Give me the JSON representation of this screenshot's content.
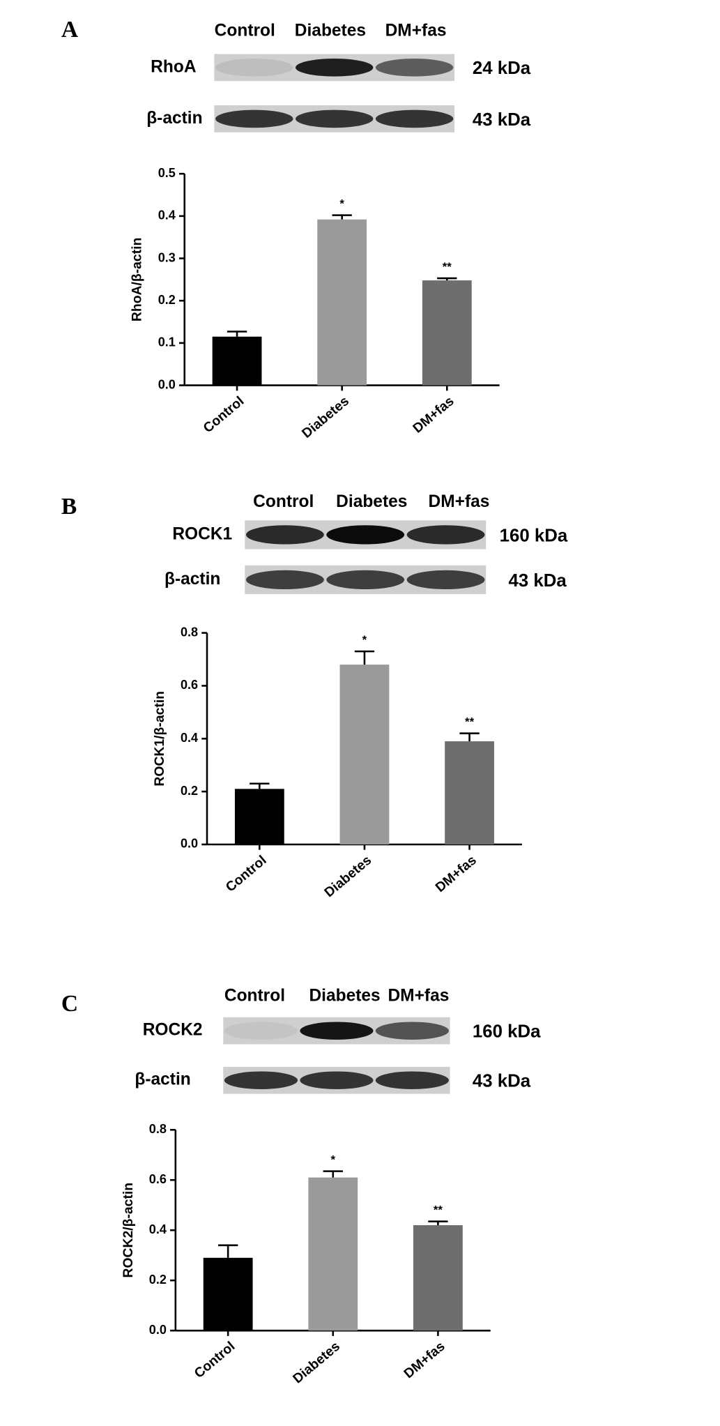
{
  "chart_data": [
    {
      "type": "bar",
      "panel": "A",
      "blot": {
        "lanes": [
          "Control",
          "Diabetes",
          "DM+fas"
        ],
        "rows": [
          {
            "protein": "RhoA",
            "size": "24 kDa"
          },
          {
            "protein": "β-actin",
            "size": "43 kDa"
          }
        ]
      },
      "ylabel": "RhoA/β-actin",
      "categories": [
        "Control",
        "Diabetes",
        "DM+fas"
      ],
      "values": [
        0.115,
        0.392,
        0.248
      ],
      "errors": [
        0.012,
        0.01,
        0.005
      ],
      "annotations": [
        null,
        "*",
        "**"
      ],
      "colors": [
        "#000000",
        "#9a9a9a",
        "#6e6e6e"
      ],
      "ylim": [
        0,
        0.5
      ],
      "yticks": [
        {
          "value": 0,
          "label": "0.0"
        },
        0.1,
        0.2,
        0.3,
        0.4,
        0.5
      ]
    },
    {
      "type": "bar",
      "panel": "B",
      "blot": {
        "lanes": [
          "Control",
          "Diabetes",
          "DM+fas"
        ],
        "rows": [
          {
            "protein": "ROCK1",
            "size": "160 kDa"
          },
          {
            "protein": "β-actin",
            "size": "43 kDa"
          }
        ]
      },
      "ylabel": "ROCK1/β-actin",
      "categories": [
        "Control",
        "Diabetes",
        "DM+fas"
      ],
      "values": [
        0.21,
        0.68,
        0.39
      ],
      "errors": [
        0.02,
        0.05,
        0.03
      ],
      "annotations": [
        null,
        "*",
        "**"
      ],
      "colors": [
        "#000000",
        "#9a9a9a",
        "#6e6e6e"
      ],
      "ylim": [
        0,
        0.8
      ],
      "yticks": [
        {
          "value": 0,
          "label": "0.0"
        },
        0.2,
        0.4,
        0.6,
        0.8
      ]
    },
    {
      "type": "bar",
      "panel": "C",
      "blot": {
        "lanes": [
          "Control",
          "Diabetes",
          "DM+fas"
        ],
        "rows": [
          {
            "protein": "ROCK2",
            "size": "160 kDa"
          },
          {
            "protein": "β-actin",
            "size": "43 kDa"
          }
        ]
      },
      "ylabel": "ROCK2/β-actin",
      "categories": [
        "Control",
        "Diabetes",
        "DM+fas"
      ],
      "values": [
        0.29,
        0.61,
        0.42
      ],
      "errors": [
        0.05,
        0.025,
        0.015
      ],
      "annotations": [
        null,
        "*",
        "**"
      ],
      "colors": [
        "#000000",
        "#9a9a9a",
        "#6e6e6e"
      ],
      "ylim": [
        0,
        0.8
      ],
      "yticks": [
        {
          "value": 0,
          "label": "0.0"
        },
        0.2,
        0.4,
        0.6,
        0.8
      ]
    }
  ]
}
